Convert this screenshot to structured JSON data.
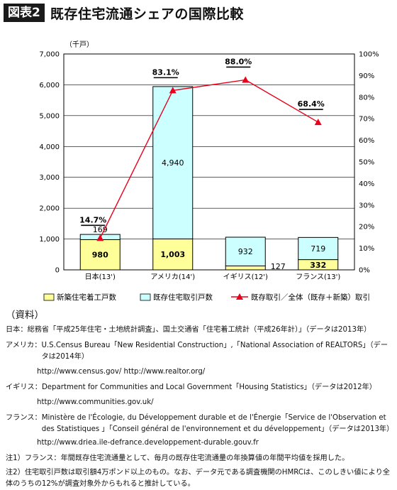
{
  "figure_label": "図表2",
  "title": "既存住宅流通シェアの国際比較",
  "chart_data": {
    "type": "bar",
    "stacked": true,
    "unit_label": "（千戸）",
    "categories": [
      "日本(13')",
      "アメリカ(14')",
      "イギリス(12')",
      "フランス(13')"
    ],
    "series": [
      {
        "name": "新築住宅着工戸数",
        "type": "bar",
        "color": "#ffff99",
        "values": [
          980,
          1003,
          127,
          332
        ]
      },
      {
        "name": "既存住宅取引戸数",
        "type": "bar",
        "color": "#ccffff",
        "values": [
          169,
          4940,
          932,
          719
        ]
      },
      {
        "name": "既存取引／全体（既存＋新築）取引",
        "type": "line",
        "axis": "right",
        "color": "#e8001c",
        "values": [
          14.7,
          83.1,
          88.0,
          68.4
        ]
      }
    ],
    "bar_labels": {
      "new": [
        "980",
        "1,003",
        "127",
        "332"
      ],
      "existing": [
        "169",
        "4,940",
        "932",
        "719"
      ],
      "share": [
        "14.7%",
        "83.1%",
        "88.0%",
        "68.4%"
      ]
    },
    "y_left": {
      "min": 0,
      "max": 7000,
      "ticks": [
        "0",
        "1,000",
        "2,000",
        "3,000",
        "4,000",
        "5,000",
        "6,000",
        "7,000"
      ]
    },
    "y_right": {
      "min": 0,
      "max": 100,
      "ticks": [
        "0%",
        "10%",
        "20%",
        "30%",
        "40%",
        "50%",
        "60%",
        "70%",
        "80%",
        "90%",
        "100%"
      ]
    },
    "grid": true,
    "legend_position": "bottom"
  },
  "sources": {
    "heading": "（資料）",
    "rows": [
      {
        "label": "日本：",
        "text": "総務省「平成25年住宅・土地統計調査」、国土交通省「住宅着工統計（平成26年計）」（データは2013年）"
      },
      {
        "label": "アメリカ：",
        "text": "U.S.Census Bureau「New Residential Construction」,「National Association of REALTORS」（データは2014年）"
      },
      {
        "label": "",
        "text": "http://www.census.gov/  http://www.realtor.org/"
      },
      {
        "label": "イギリス：",
        "text": "Department for Communities and Local Government「Housing Statistics」（データは2012年）"
      },
      {
        "label": "",
        "text": "http://www.communities.gov.uk/"
      },
      {
        "label": "フランス：",
        "text": "Ministère de l'Écologie, du Développement durable et de l'Énergie「Service de l'Observation et des Statistiques 」「Conseil général de l'environnement et du développement」（データは2013年）"
      },
      {
        "label": "",
        "text": "http://www.driea.ile-defrance.developpement-durable.gouv.fr"
      }
    ],
    "notes": [
      "注1）フランス：年間既存住宅流通量として、毎月の既存住宅流通量の年換算値の年間平均値を採用した。",
      "注2）住宅取引戸数は取引額4万ポンド以上のもの。なお、データ元である調査機関のHMRCは、このしきい値により全体のうちの12%が調査対象外からもれると推計している。"
    ]
  }
}
